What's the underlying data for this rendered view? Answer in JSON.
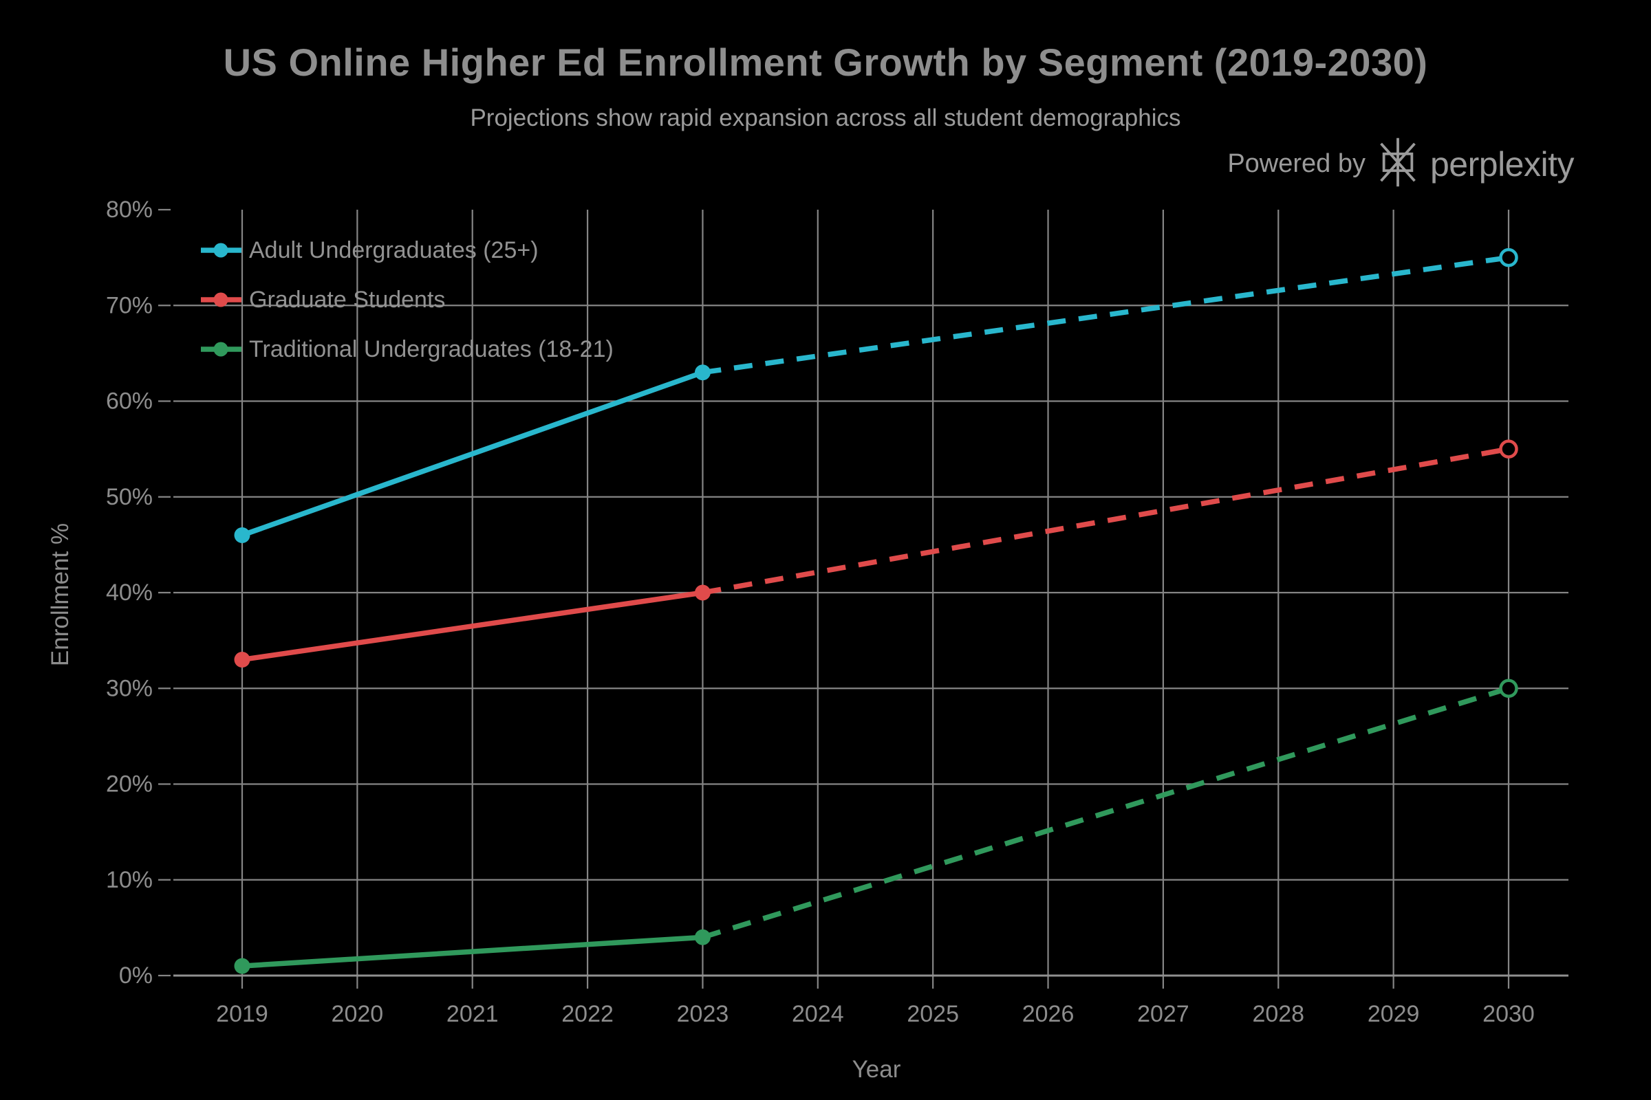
{
  "header": {
    "powered_by": {
      "label": "Powered by",
      "brand": "perplexity"
    }
  },
  "colors": {
    "background": "#000000",
    "grid": "#858585",
    "axis_line": "#909090",
    "title_text": "#8e8e8e",
    "subtitle_text": "#9b9b9b",
    "tick_text": "#8d8d8d",
    "legend_text": "#929292",
    "powered_by_text": "#9b9b9b",
    "adult_undergrad_cyan": "#29b7cd",
    "graduate_red": "#e04b4b",
    "traditional_green": "#30995c"
  },
  "chart_data": {
    "type": "line",
    "title": "US Online Higher Ed Enrollment Growth by Segment (2019-2030)",
    "subtitle": "Projections show rapid expansion across all student demographics",
    "xlabel": "Year",
    "ylabel": "Enrollment %",
    "x_tick_labels": [
      "2019",
      "2020",
      "2021",
      "2022",
      "2023",
      "2024",
      "2025",
      "2026",
      "2027",
      "2028",
      "2029",
      "2030"
    ],
    "y_tick_labels": [
      "0%",
      "10%",
      "20%",
      "30%",
      "40%",
      "50%",
      "60%",
      "70%",
      "80%"
    ],
    "xlim": [
      2019,
      2030
    ],
    "ylim": [
      0,
      80
    ],
    "grid": true,
    "legend_position": "top-left",
    "projection_start_year": 2023,
    "line_styles": {
      "actual": "solid",
      "projection": "dashed"
    },
    "series": [
      {
        "name": "Adult Undergraduates (25+)",
        "color": "#29b7cd",
        "x": [
          2019,
          2023,
          2030
        ],
        "values": [
          46,
          63,
          75
        ],
        "solid_until": 2023,
        "end_marker": "open-circle"
      },
      {
        "name": "Graduate Students",
        "color": "#e04b4b",
        "x": [
          2019,
          2023,
          2030
        ],
        "values": [
          33,
          40,
          55
        ],
        "solid_until": 2023,
        "end_marker": "open-circle"
      },
      {
        "name": "Traditional Undergraduates (18-21)",
        "color": "#30995c",
        "x": [
          2019,
          2023,
          2030
        ],
        "values": [
          1,
          4,
          30
        ],
        "solid_until": 2023,
        "end_marker": "open-circle"
      }
    ]
  }
}
